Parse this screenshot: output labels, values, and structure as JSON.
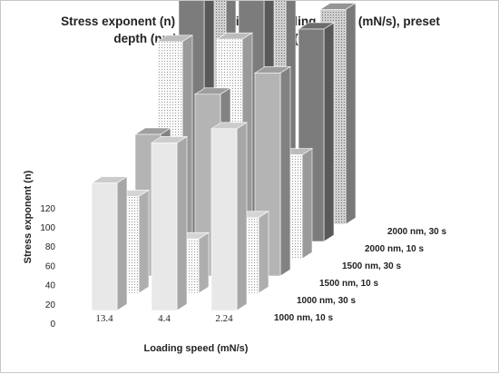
{
  "chart_data": {
    "type": "bar",
    "title_lines": [
      "Stress exponent (n) as a function of loading speed (mN/s), preset",
      "depth (nm) and creep duration (s)"
    ],
    "xlabel": "Loading speed (mN/s)",
    "ylabel": "Stress exponent (n)",
    "ylim": [
      0,
      120
    ],
    "yticks": [
      "0",
      "20",
      "40",
      "60",
      "80",
      "100",
      "120"
    ],
    "categories": [
      "13.4",
      "4.4",
      "2.24"
    ],
    "grid": false,
    "series": [
      {
        "name": "1000 nm, 10 s",
        "values": [
          54,
          71,
          77
        ],
        "color": "#e8e8e8",
        "pattern": "solid"
      },
      {
        "name": "1000 nm, 30 s",
        "values": [
          41,
          23,
          32
        ],
        "color": "#f2f2f2",
        "pattern": "dots"
      },
      {
        "name": "1500 nm, 10 s",
        "values": [
          60,
          77,
          86
        ],
        "color": "#b4b4b4",
        "pattern": "solid"
      },
      {
        "name": "1500 nm, 30 s",
        "values": [
          92,
          93,
          44
        ],
        "color": "#d6d6d6",
        "pattern": "dots"
      },
      {
        "name": "2000 nm, 10 s",
        "values": [
          107,
          106,
          90
        ],
        "color": "#7c7c7c",
        "pattern": "solid"
      },
      {
        "name": "2000 nm, 30 s",
        "values": [
          116,
          107,
          91
        ],
        "color": "#a8a8a8",
        "pattern": "dots"
      }
    ]
  }
}
